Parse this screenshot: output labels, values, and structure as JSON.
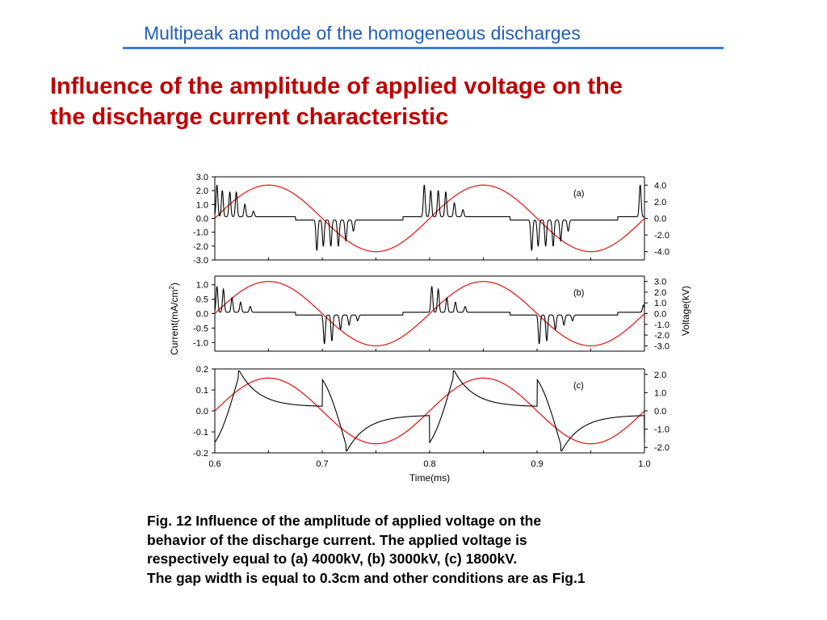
{
  "header": {
    "title": "Multipeak and mode of the homogeneous discharges"
  },
  "heading": {
    "line1": "Influence of the amplitude of applied voltage on the",
    "line2": "the discharge current characteristic"
  },
  "caption": {
    "line1": "Fig. 12  Influence of the amplitude of applied voltage on the",
    "line2": "behavior of the discharge current. The applied voltage is",
    "line3": "respectively equal to (a) 4000kV, (b) 3000kV, (c)    1800kV.",
    "line4": "The gap width is equal to 0.3cm and other conditions are as Fig.1"
  },
  "colors": {
    "current": "#000000",
    "voltage": "#e8201c"
  },
  "chart_data": {
    "type": "line",
    "xlabel": "Time(ms)",
    "ylabel_left": "Current(mA/cm",
    "ylabel_left_sup": "2",
    "ylabel_left_close": ")",
    "ylabel_right": "Voltage(kV)",
    "x_ticks": [
      "0.6",
      "0.7",
      "0.8",
      "0.9",
      "1.0"
    ],
    "xlim": [
      0.6,
      1.0
    ],
    "panels": [
      {
        "label": "(a)",
        "ylim_current": [
          -3.0,
          3.0
        ],
        "current_ticks": [
          "3.0",
          "2.0",
          "1.0",
          "0.0",
          "-1.0",
          "-2.0",
          "-3.0"
        ],
        "current_tick_values": [
          3,
          2,
          1,
          0,
          -1,
          -2,
          -3
        ],
        "ylim_voltage": [
          -5.0,
          5.0
        ],
        "voltage_ticks": [
          "4.0",
          "2.0",
          "0.0",
          "-2.0",
          "-4.0"
        ],
        "voltage_tick_values": [
          4,
          2,
          0,
          -2,
          -4
        ],
        "voltage_amplitude": 4.0,
        "current_baseline": 0.15,
        "current_peaks": [
          [
            0.602,
            2.3
          ],
          [
            0.607,
            1.9
          ],
          [
            0.614,
            1.8
          ],
          [
            0.62,
            1.8
          ],
          [
            0.628,
            0.9
          ],
          [
            0.636,
            0.4
          ],
          [
            0.695,
            -2.2
          ],
          [
            0.701,
            -1.9
          ],
          [
            0.708,
            -1.9
          ],
          [
            0.715,
            -1.9
          ],
          [
            0.722,
            -1.5
          ],
          [
            0.729,
            -0.8
          ],
          [
            0.795,
            2.3
          ],
          [
            0.801,
            1.9
          ],
          [
            0.808,
            1.9
          ],
          [
            0.815,
            1.8
          ],
          [
            0.823,
            1.0
          ],
          [
            0.831,
            0.5
          ],
          [
            0.895,
            -2.2
          ],
          [
            0.901,
            -1.9
          ],
          [
            0.908,
            -1.9
          ],
          [
            0.915,
            -1.9
          ],
          [
            0.922,
            -1.5
          ],
          [
            0.929,
            -0.8
          ],
          [
            0.996,
            2.3
          ]
        ]
      },
      {
        "label": "(b)",
        "ylim_current": [
          -1.3,
          1.3
        ],
        "current_ticks": [
          "1.0",
          "0.5",
          "0.0",
          "-0.5",
          "-1.0"
        ],
        "current_tick_values": [
          1,
          0.5,
          0,
          -0.5,
          -1
        ],
        "ylim_voltage": [
          -3.5,
          3.5
        ],
        "voltage_ticks": [
          "3.0",
          "2.0",
          "1.0",
          "0.0",
          "-1.0",
          "-2.0",
          "-3.0"
        ],
        "voltage_tick_values": [
          3,
          2,
          1,
          0,
          -1,
          -2,
          -3
        ],
        "voltage_amplitude": 3.0,
        "current_baseline": 0.06,
        "current_peaks": [
          [
            0.602,
            0.9
          ],
          [
            0.608,
            0.8
          ],
          [
            0.616,
            0.5
          ],
          [
            0.624,
            0.35
          ],
          [
            0.633,
            0.2
          ],
          [
            0.702,
            -1.0
          ],
          [
            0.709,
            -0.9
          ],
          [
            0.717,
            -0.5
          ],
          [
            0.725,
            -0.35
          ],
          [
            0.733,
            -0.2
          ],
          [
            0.802,
            0.9
          ],
          [
            0.808,
            0.8
          ],
          [
            0.816,
            0.5
          ],
          [
            0.824,
            0.35
          ],
          [
            0.833,
            0.2
          ],
          [
            0.902,
            -1.0
          ],
          [
            0.909,
            -0.9
          ],
          [
            0.917,
            -0.5
          ],
          [
            0.925,
            -0.35
          ],
          [
            0.933,
            -0.2
          ],
          [
            0.999,
            0.25
          ]
        ]
      },
      {
        "label": "(c)",
        "ylim_current": [
          -0.2,
          0.2
        ],
        "current_ticks": [
          "0.2",
          "0.1",
          "0.0",
          "-0.1",
          "-0.2"
        ],
        "current_tick_values": [
          0.2,
          0.1,
          0,
          -0.1,
          -0.2
        ],
        "ylim_voltage": [
          -2.3,
          2.3
        ],
        "voltage_ticks": [
          "2.0",
          "1.0",
          "0.0",
          "-1.0",
          "-2.0"
        ],
        "voltage_tick_values": [
          2,
          1,
          0,
          -1,
          -2
        ],
        "voltage_amplitude": 1.8,
        "current_shape": "smooth"
      }
    ]
  }
}
